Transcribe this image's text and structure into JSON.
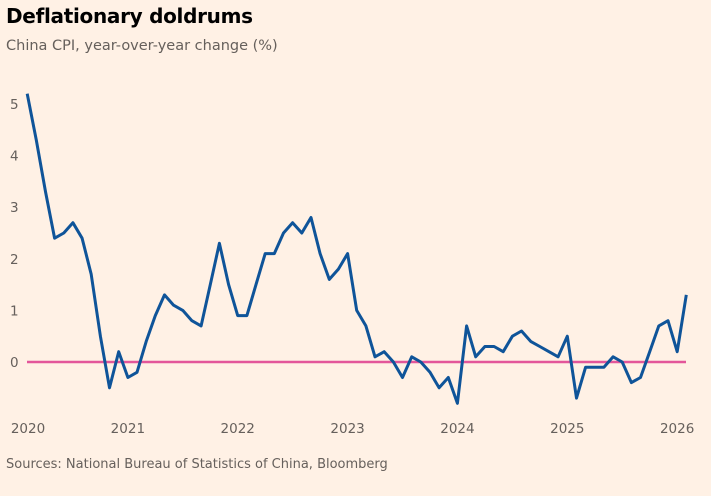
{
  "title": "Deflationary doldrums",
  "subtitle": "China CPI, year-over-year change (%)",
  "source": "Sources: National Bureau of Statistics of China, Bloomberg",
  "chart_data": {
    "type": "line",
    "title": "Deflationary doldrums",
    "subtitle": "China CPI, year-over-year change (%)",
    "xlabel": "",
    "ylabel": "",
    "x_start": "2020-02",
    "x_end": "2026-02",
    "frequency": "monthly",
    "x_ticks": [
      "2020",
      "2021",
      "2022",
      "2023",
      "2024",
      "2025",
      "2026"
    ],
    "y_ticks": [
      0,
      1,
      2,
      3,
      4,
      5
    ],
    "ylim": [
      -0.9,
      5.3
    ],
    "grid": false,
    "reference_line": {
      "value": 0,
      "color": "#e3569a"
    },
    "series": [
      {
        "color": "#0f5499",
        "values": [
          5.2,
          4.3,
          3.3,
          2.4,
          2.5,
          2.7,
          2.4,
          1.7,
          0.5,
          -0.5,
          0.2,
          -0.3,
          -0.2,
          0.4,
          0.9,
          1.3,
          1.1,
          1.0,
          0.8,
          0.7,
          1.5,
          2.3,
          1.5,
          0.9,
          0.9,
          1.5,
          2.1,
          2.1,
          2.5,
          2.7,
          2.5,
          2.8,
          2.1,
          1.6,
          1.8,
          2.1,
          1.0,
          0.7,
          0.1,
          0.2,
          0.0,
          -0.3,
          0.1,
          0.0,
          -0.2,
          -0.5,
          -0.3,
          -0.8,
          0.7,
          0.1,
          0.3,
          0.3,
          0.2,
          0.5,
          0.6,
          0.4,
          0.3,
          0.2,
          0.1,
          0.5,
          -0.7,
          -0.1,
          -0.1,
          -0.1,
          0.1,
          0.0,
          -0.4,
          -0.3,
          0.2,
          0.7,
          0.8,
          0.2,
          1.3
        ]
      }
    ]
  }
}
